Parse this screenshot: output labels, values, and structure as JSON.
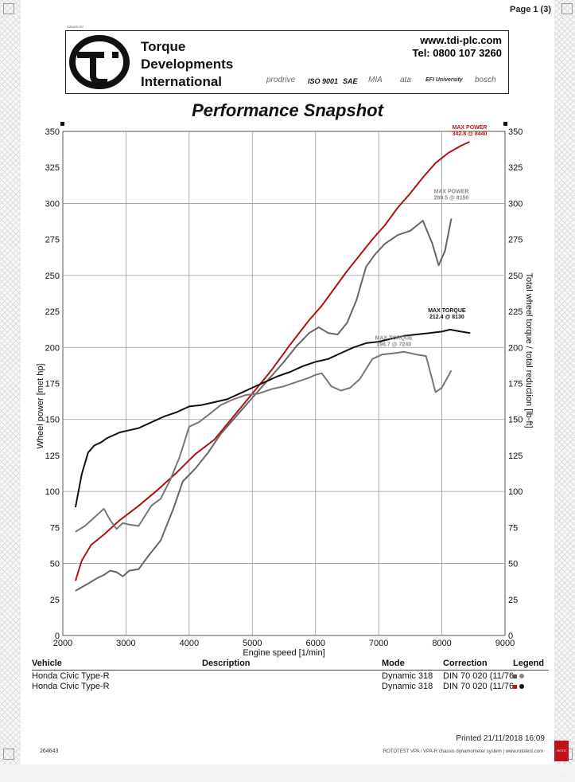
{
  "page": {
    "number_label": "Page 1 (3)"
  },
  "header": {
    "issued_by": "ISSUED BY",
    "company_name": [
      "Torque",
      "Developments",
      "International"
    ],
    "website": "www.tdi-plc.com",
    "phone": "Tel: 0800 107 3260",
    "certifications": [
      "prodrive",
      "ISO 9001",
      "SAE",
      "MIA",
      "ata",
      "EFI University",
      "bosch"
    ]
  },
  "title": "Performance Snapshot",
  "chart_data": {
    "type": "line",
    "xlabel": "Engine speed [1/min]",
    "ylabel": "Wheel power [met hp]",
    "y2label": "Total wheel torque / total reduction [lb-ft]",
    "xlim": [
      2000,
      9000
    ],
    "ylim": [
      0,
      350
    ],
    "xticks": [
      2000,
      3000,
      4000,
      5000,
      6000,
      7000,
      8000,
      9000
    ],
    "yticks": [
      0,
      25,
      50,
      75,
      100,
      125,
      150,
      175,
      200,
      225,
      250,
      275,
      300,
      325,
      350
    ],
    "grid": true,
    "series": [
      {
        "color": "#b01212",
        "x": [
          2200,
          2300,
          2450,
          2650,
          2900,
          3200,
          3500,
          3800,
          4100,
          4400,
          4700,
          5000,
          5300,
          5600,
          5900,
          6100,
          6300,
          6500,
          6700,
          6900,
          7100,
          7300,
          7500,
          7700,
          7900,
          8100,
          8300,
          8440
        ],
        "y": [
          38,
          52,
          63,
          70,
          80,
          90,
          101,
          113,
          126,
          136,
          152,
          168,
          184,
          202,
          219,
          229,
          241,
          253,
          264,
          275,
          285,
          297,
          307,
          318,
          328,
          335,
          340,
          342.8
        ]
      },
      {
        "color": "#666666",
        "x": [
          2200,
          2400,
          2550,
          2650,
          2750,
          2850,
          2950,
          3050,
          3200,
          3350,
          3550,
          3750,
          3900,
          4100,
          4300,
          4500,
          4700,
          4900,
          5100,
          5300,
          5500,
          5700,
          5900,
          6050,
          6200,
          6350,
          6500,
          6650,
          6800,
          6950,
          7100,
          7300,
          7500,
          7700,
          7850,
          7950,
          8050,
          8150
        ],
        "y": [
          31,
          36,
          40,
          42,
          45,
          44,
          41,
          45,
          46,
          55,
          66,
          88,
          107,
          116,
          127,
          140,
          150,
          160,
          170,
          180,
          190,
          201,
          210,
          214,
          210,
          209,
          217,
          233,
          256,
          265,
          272,
          278,
          281,
          288,
          272,
          257,
          267,
          289.5
        ]
      },
      {
        "color": "#111111",
        "x": [
          2200,
          2300,
          2400,
          2500,
          2600,
          2700,
          2800,
          2900,
          3000,
          3200,
          3400,
          3600,
          3800,
          4000,
          4200,
          4400,
          4600,
          4800,
          5000,
          5200,
          5400,
          5600,
          5800,
          6000,
          6200,
          6400,
          6600,
          6800,
          7000,
          7200,
          7400,
          7600,
          7800,
          8000,
          8130,
          8300,
          8450
        ],
        "y": [
          89,
          112,
          127,
          132,
          134,
          137,
          139,
          141,
          142,
          144,
          148,
          152,
          155,
          159,
          160,
          162,
          164,
          168,
          172,
          176,
          180,
          183,
          187,
          190,
          192,
          196,
          200,
          203,
          204,
          206,
          208,
          209,
          210,
          211,
          212.4,
          211,
          210
        ]
      },
      {
        "color": "#777777",
        "x": [
          2200,
          2350,
          2500,
          2650,
          2750,
          2850,
          2950,
          3050,
          3200,
          3400,
          3550,
          3700,
          3850,
          4000,
          4150,
          4300,
          4500,
          4700,
          4900,
          5100,
          5300,
          5500,
          5700,
          5900,
          6000,
          6100,
          6250,
          6400,
          6550,
          6700,
          6900,
          7050,
          7250,
          7400,
          7600,
          7750,
          7900,
          8000,
          8150
        ],
        "y": [
          72,
          76,
          82,
          88,
          80,
          74,
          78,
          77,
          76,
          90,
          95,
          108,
          124,
          145,
          148,
          153,
          160,
          164,
          167,
          168,
          171,
          173,
          176,
          179,
          181,
          182,
          173,
          170,
          172,
          178,
          192,
          195,
          196,
          197,
          195,
          194,
          169,
          172,
          184
        ]
      }
    ],
    "annotations": [
      {
        "text": [
          "MAX POWER",
          "342.8 @ 8440"
        ],
        "color": "#c01818",
        "x": 8440,
        "y": 342.8
      },
      {
        "text": [
          "MAX POWER",
          "289.5 @ 8150"
        ],
        "color": "#888888",
        "x": 8150,
        "y": 289.5
      },
      {
        "text": [
          "MAX TORQUE",
          "212.4 @ 8130"
        ],
        "color": "#111111",
        "x": 8130,
        "y": 212.4
      },
      {
        "text": [
          "MAX TORQUE",
          "196.7 @ 7240"
        ],
        "color": "#888888",
        "x": 7240,
        "y": 196.7
      }
    ]
  },
  "legend_table": {
    "headers": {
      "vehicle": "Vehicle",
      "description": "Description",
      "mode": "Mode",
      "correction": "Correction",
      "legend": "Legend"
    },
    "rows": [
      {
        "vehicle": "Honda Civic Type-R",
        "description": "",
        "mode": "Dynamic 318",
        "correction": "DIN 70 020 (11/76)",
        "swatch": "#555555",
        "dot": "#888888"
      },
      {
        "vehicle": "Honda Civic Type-R",
        "description": "",
        "mode": "Dynamic 318",
        "correction": "DIN 70 020 (11/76)",
        "swatch": "#c01818",
        "dot": "#111111"
      }
    ]
  },
  "footer": {
    "printed": "Printed 21/11/2018 16:09",
    "doc_id": "264643",
    "system": "ROTOTEST VPA / VPA-R chassis dynamometer system | www.rototest.com",
    "badge": "ROTO TEST"
  }
}
